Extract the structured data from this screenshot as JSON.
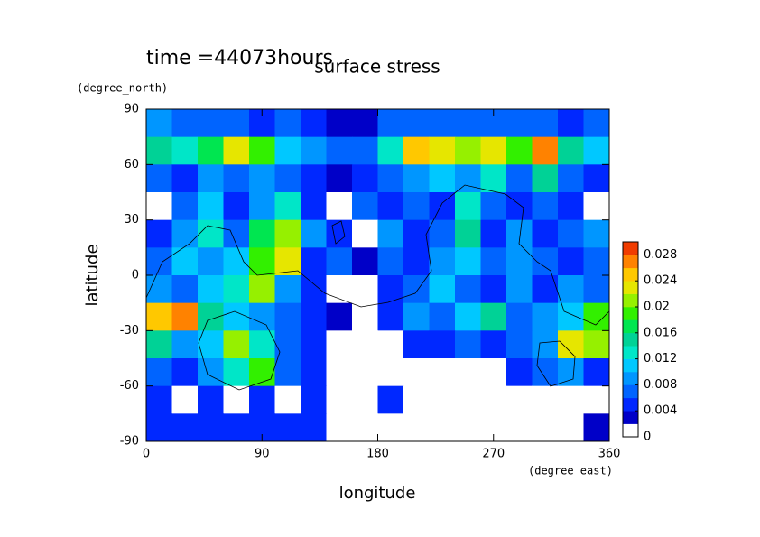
{
  "chart_data": {
    "type": "contour",
    "title": "surface stress",
    "subtitle": "time =44073hours",
    "xlabel": "longitude",
    "xunit": "(degree_east)",
    "ylabel": "latitude",
    "yunit": "(degree_north)",
    "xlim": [
      0,
      360
    ],
    "xticks": [
      0,
      90,
      180,
      270,
      360
    ],
    "ylim": [
      -90,
      90
    ],
    "yticks": [
      -90,
      -60,
      -30,
      0,
      30,
      60,
      90
    ],
    "clim": [
      0,
      0.03
    ],
    "cticks": [
      0,
      0.004,
      0.008,
      0.012,
      0.016,
      0.02,
      0.024,
      0.028
    ],
    "colors": [
      "#ffffff",
      "#0000c8",
      "#0028ff",
      "#0064ff",
      "#0096ff",
      "#00c8ff",
      "#00e6c8",
      "#00d296",
      "#00e650",
      "#32f000",
      "#96f000",
      "#e6e600",
      "#ffc800",
      "#ff8200",
      "#f03c00"
    ],
    "x": [
      10,
      30,
      50,
      70,
      90,
      110,
      130,
      150,
      170,
      190,
      210,
      230,
      250,
      270,
      290,
      310,
      330,
      350
    ],
    "y": [
      82.5,
      67.5,
      52.5,
      37.5,
      22.5,
      7.5,
      -7.5,
      -22.5,
      -37.5,
      -52.5,
      -67.5,
      -82.5
    ],
    "z": [
      [
        0.008,
        0.007,
        0.006,
        0.006,
        0.005,
        0.006,
        0.004,
        0.002,
        0.003,
        0.006,
        0.007,
        0.006,
        0.006,
        0.007,
        0.007,
        0.006,
        0.004,
        0.006
      ],
      [
        0.014,
        0.012,
        0.016,
        0.022,
        0.018,
        0.01,
        0.008,
        0.006,
        0.006,
        0.012,
        0.024,
        0.022,
        0.02,
        0.022,
        0.018,
        0.026,
        0.014,
        0.01
      ],
      [
        0.006,
        0.004,
        0.008,
        0.006,
        0.008,
        0.006,
        0.004,
        0.002,
        0.004,
        0.006,
        0.008,
        0.01,
        0.008,
        0.012,
        0.006,
        0.014,
        0.006,
        0.004
      ],
      [
        0,
        0.006,
        0.01,
        0.004,
        0.008,
        0.012,
        0.004,
        0,
        0.006,
        0.004,
        0.006,
        0.004,
        0.012,
        0.006,
        0.004,
        0.006,
        0.004,
        0
      ],
      [
        0.004,
        0.008,
        0.012,
        0.006,
        0.016,
        0.02,
        0.008,
        0.004,
        0,
        0.008,
        0.004,
        0.006,
        0.014,
        0.004,
        0.008,
        0.004,
        0.006,
        0.008
      ],
      [
        0.006,
        0.01,
        0.008,
        0.01,
        0.018,
        0.022,
        0.004,
        0.006,
        0.002,
        0.006,
        0.004,
        0.008,
        0.01,
        0.006,
        0.008,
        0.006,
        0.004,
        0.006
      ],
      [
        0.008,
        0.006,
        0.01,
        0.012,
        0.02,
        0.008,
        0.004,
        0,
        0,
        0.004,
        0.006,
        0.01,
        0.006,
        0.004,
        0.008,
        0.004,
        0.008,
        0.006
      ],
      [
        0.024,
        0.026,
        0.014,
        0.01,
        0.008,
        0.006,
        0.004,
        0.002,
        0,
        0.004,
        0.008,
        0.006,
        0.01,
        0.014,
        0.006,
        0.008,
        0.01,
        0.018
      ],
      [
        0.014,
        0.008,
        0.01,
        0.02,
        0.012,
        0.006,
        0.004,
        0,
        0,
        0,
        0.004,
        0.004,
        0.006,
        0.004,
        0.006,
        0.008,
        0.022,
        0.02
      ],
      [
        0.006,
        0.004,
        0.008,
        0.012,
        0.018,
        0.006,
        0.004,
        0,
        0,
        0,
        0,
        0,
        0,
        0,
        0.004,
        0.006,
        0.008,
        0.004
      ],
      [
        0.004,
        0,
        0.004,
        0,
        0.004,
        0,
        0.004,
        0,
        0,
        0.004,
        0,
        0,
        0,
        0,
        0,
        0,
        0,
        0
      ],
      [
        0.004,
        0.004,
        0.004,
        0.004,
        0.004,
        0.004,
        0.004,
        0,
        0,
        0,
        0,
        0,
        0,
        0,
        0,
        0,
        0,
        0.002
      ]
    ]
  }
}
